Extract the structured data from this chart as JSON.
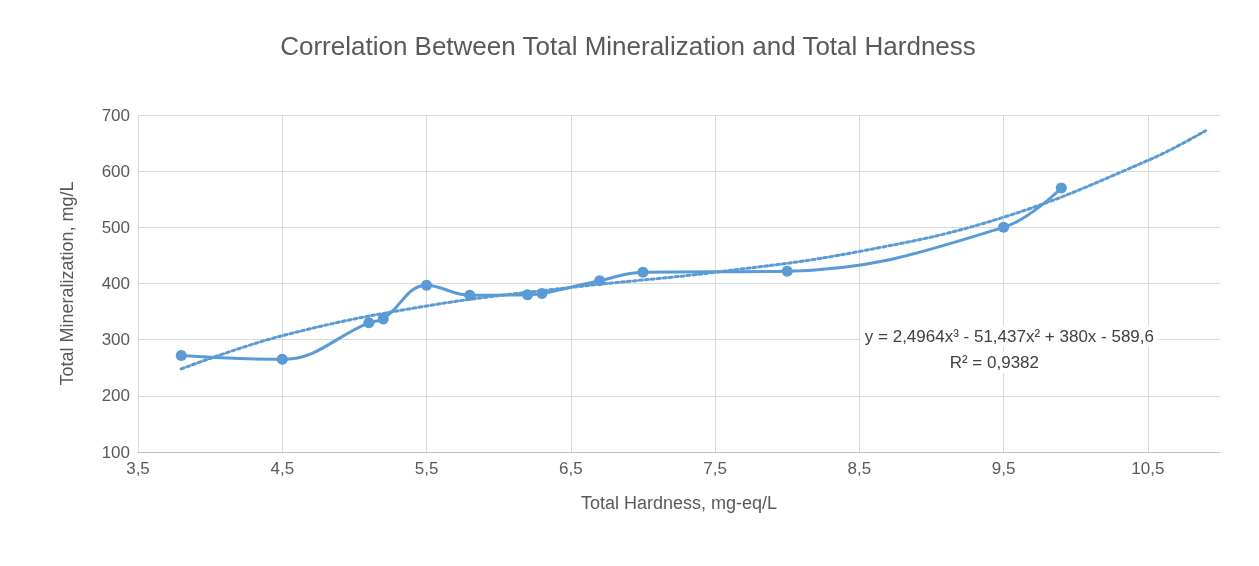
{
  "chart_data": {
    "type": "line",
    "title": "Correlation Between Total Mineralization and Total Hardness",
    "xlabel": "Total Hardness, mg-eq/L",
    "ylabel": "Total Mineralization, mg/L",
    "series": [
      {
        "color": "#5b9bd5",
        "marker": "circle",
        "line_style": "solid",
        "x": [
          3.8,
          4.5,
          5.1,
          5.2,
          5.5,
          5.8,
          6.2,
          6.3,
          6.7,
          7.0,
          8.0,
          9.5,
          9.9
        ],
        "values": [
          272,
          265,
          330,
          337,
          397,
          379,
          380,
          382,
          405,
          420,
          422,
          500,
          570
        ]
      },
      {
        "color": "#5b9bd5",
        "marker": "none",
        "line_style": "dotted",
        "x": [
          3.8,
          4.5,
          5.5,
          6.5,
          7.5,
          8.5,
          9.5,
          10.5,
          10.9
        ],
        "values": [
          248,
          307,
          360,
          393,
          420,
          457,
          518,
          619,
          672
        ]
      }
    ],
    "annotations": [
      "y = 2,4964x³ - 51,437x² + 380x - 589,6",
      "R² = 0,9382"
    ],
    "xlim": [
      3.5,
      11
    ],
    "xticks": [
      {
        "value": 3.5,
        "label": "3,5"
      },
      {
        "value": 4.5,
        "label": "4,5"
      },
      {
        "value": 5.5,
        "label": "5,5"
      },
      {
        "value": 6.5,
        "label": "6,5"
      },
      {
        "value": 7.5,
        "label": "7,5"
      },
      {
        "value": 8.5,
        "label": "8,5"
      },
      {
        "value": 9.5,
        "label": "9,5"
      },
      {
        "value": 10.5,
        "label": "10,5"
      }
    ],
    "ylim": [
      100,
      700
    ],
    "yticks": [
      100,
      200,
      300,
      400,
      500,
      600,
      700
    ],
    "grid": true
  }
}
